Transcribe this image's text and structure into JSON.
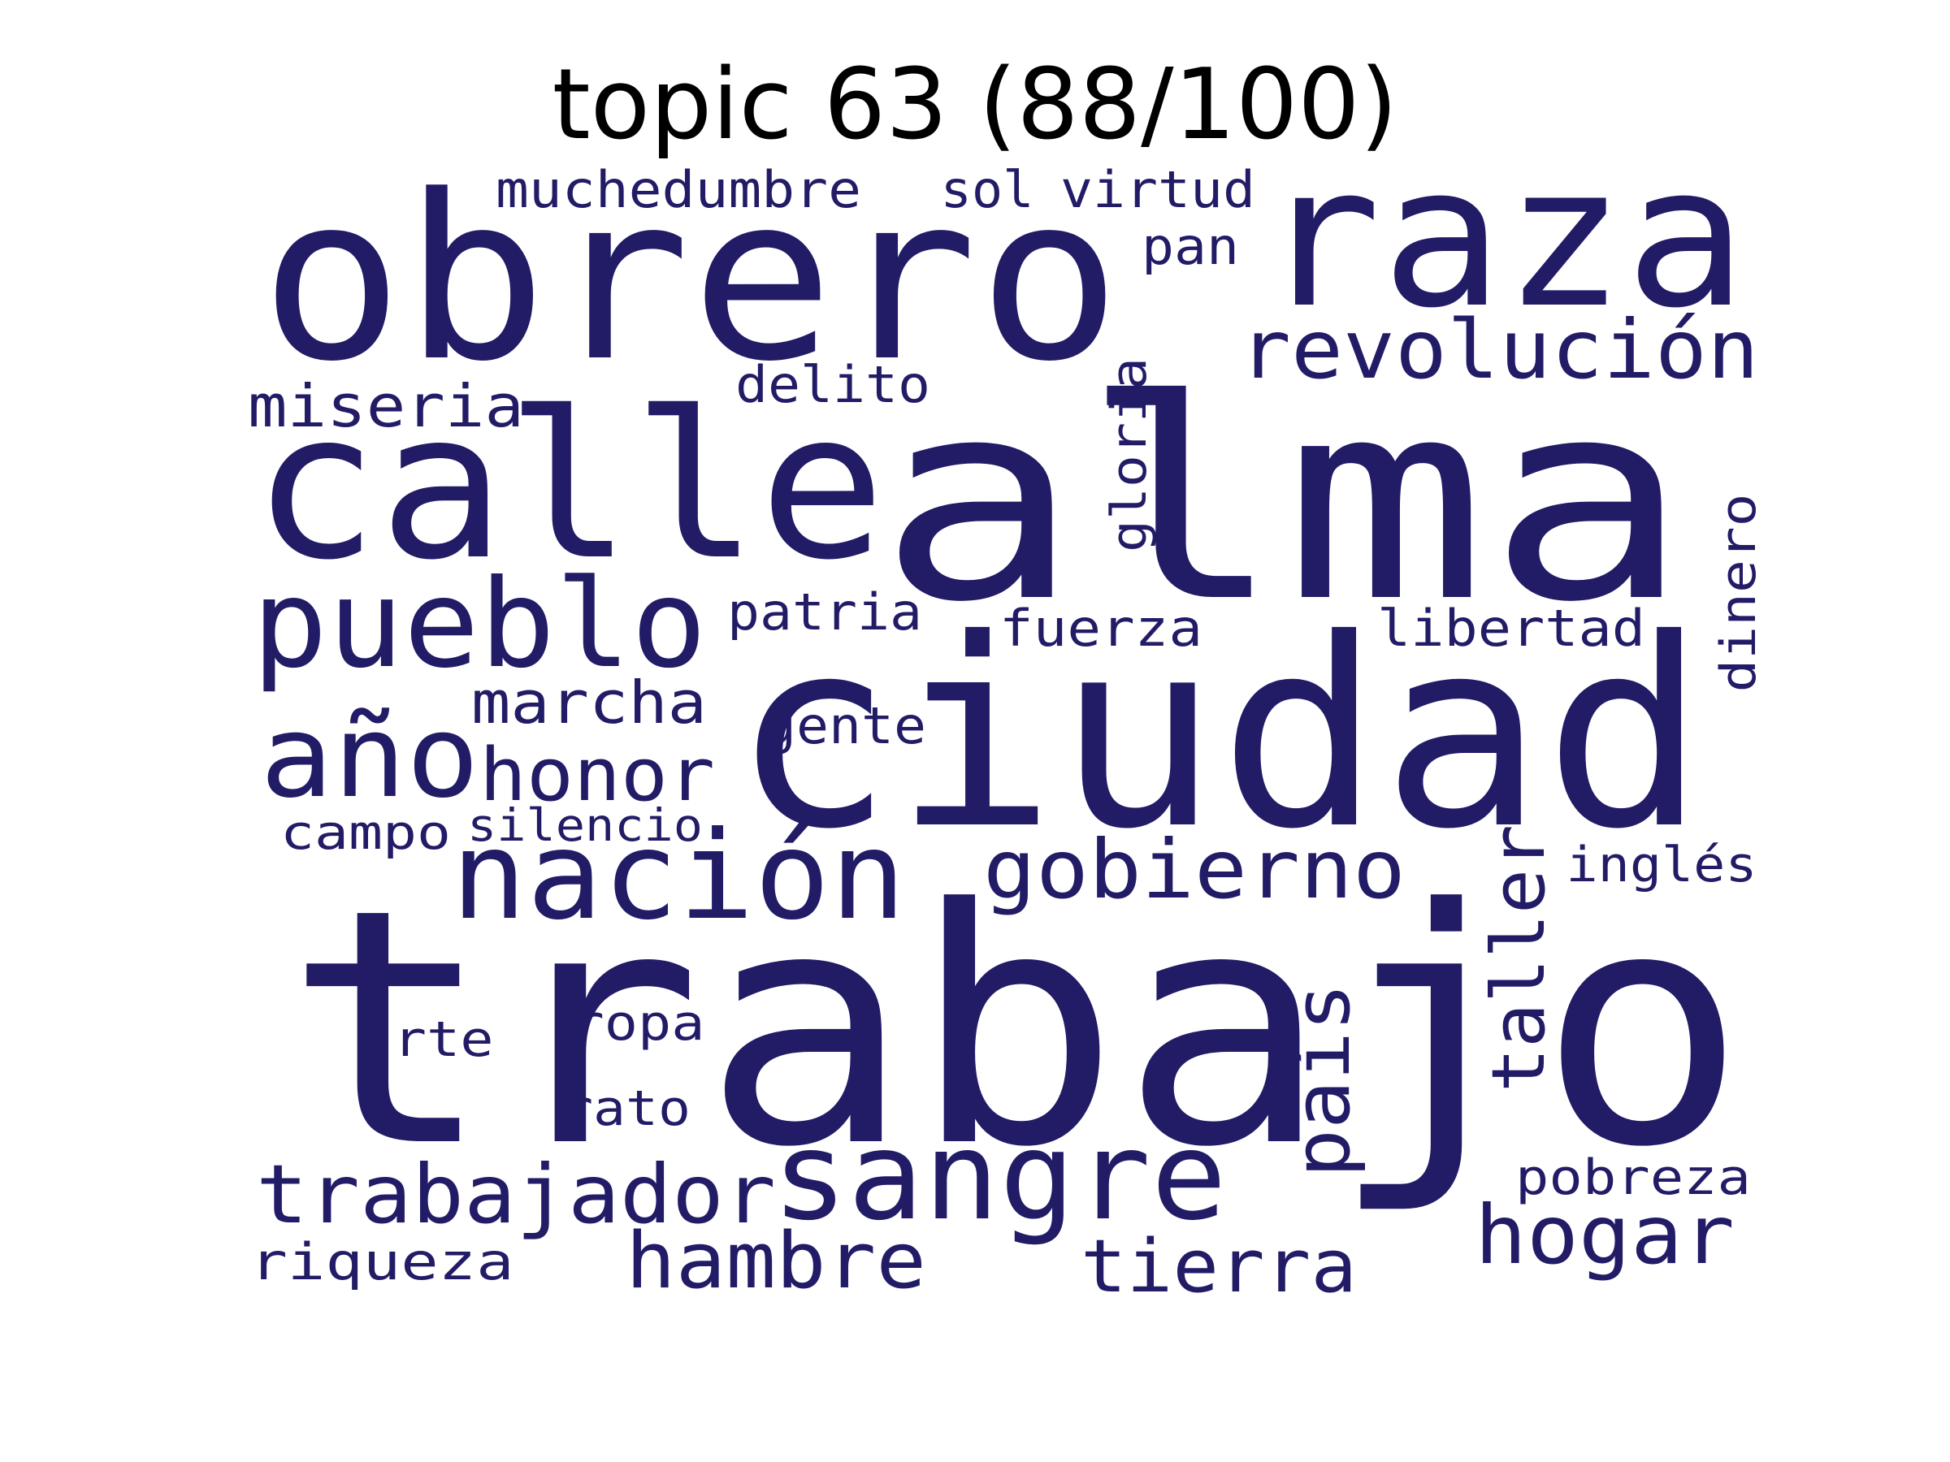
{
  "title": "topic 63 (88/100)",
  "colors": {
    "word": "#221c67",
    "background": "#ffffff",
    "title": "#000000"
  },
  "words": {
    "trabajo": "trabajo",
    "alma": "alma",
    "ciudad": "ciudad",
    "obrero": "obrero",
    "calle": "calle",
    "raza": "raza",
    "pueblo": "pueblo",
    "nacion": "nación",
    "sangre": "sangre",
    "ano": "año",
    "revolucion": "revolución",
    "gobierno": "gobierno",
    "trabajador": "trabajador",
    "honor": "honor",
    "hogar": "hogar",
    "hambre": "hambre",
    "tierra": "tierra",
    "taller": "taller",
    "pais": "país",
    "marcha": "marcha",
    "miseria": "miseria",
    "muchedumbre": "muchedumbre",
    "patria": "patria",
    "fuerza": "fuerza",
    "libertad": "libertad",
    "gloria": "gloria",
    "dinero": "dinero",
    "delito": "delito",
    "pan": "pan",
    "sol": "sol",
    "virtud": "virtud",
    "gente": "gente",
    "campo": "campo",
    "silencio": "silencio",
    "ingles": "inglés",
    "arte": "arte",
    "ropa": "ropa",
    "rato": "rato",
    "pobreza": "pobreza",
    "riqueza": "riqueza"
  }
}
